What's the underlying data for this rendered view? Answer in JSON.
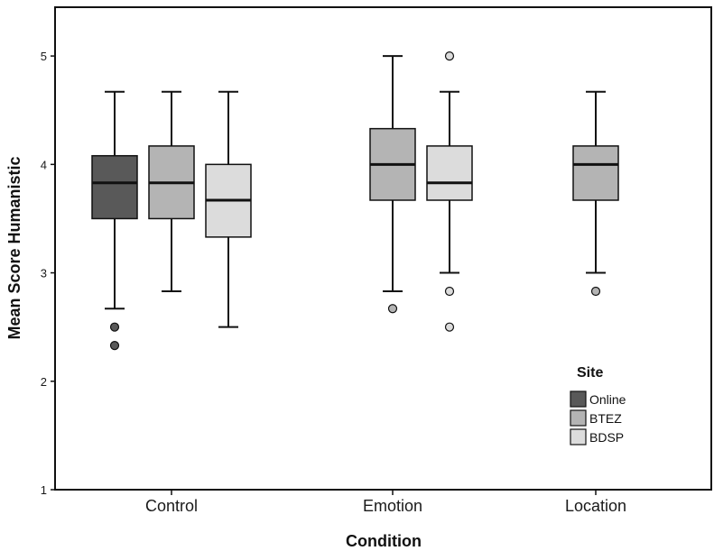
{
  "chart_data": {
    "type": "boxplot",
    "title": "",
    "xlabel": "Condition",
    "ylabel": "Mean Score Humanistic",
    "categories": [
      "Control",
      "Emotion",
      "Location"
    ],
    "ylim": [
      1,
      5.45
    ],
    "yticks": [
      "1",
      "2",
      "3",
      "4",
      "5"
    ],
    "grid": false,
    "legend": {
      "title": "Site",
      "position": "bottom-right"
    },
    "series": [
      {
        "name": "Online",
        "color": "#595959",
        "boxes": [
          {
            "category": "Control",
            "min": 2.67,
            "q1": 3.5,
            "median": 3.83,
            "q3": 4.08,
            "max": 4.67,
            "outliers": [
              2.5,
              2.33
            ]
          },
          null,
          null
        ]
      },
      {
        "name": "BTEZ",
        "color": "#b4b4b4",
        "boxes": [
          {
            "category": "Control",
            "min": 2.83,
            "q1": 3.5,
            "median": 3.83,
            "q3": 4.17,
            "max": 4.67,
            "outliers": []
          },
          {
            "category": "Emotion",
            "min": 2.83,
            "q1": 3.67,
            "median": 4.0,
            "q3": 4.33,
            "max": 5.0,
            "outliers": [
              2.67
            ]
          },
          {
            "category": "Location",
            "min": 3.0,
            "q1": 3.67,
            "median": 4.0,
            "q3": 4.17,
            "max": 4.67,
            "outliers": [
              2.83
            ]
          }
        ]
      },
      {
        "name": "BDSP",
        "color": "#dcdcdc",
        "boxes": [
          {
            "category": "Control",
            "min": 2.5,
            "q1": 3.33,
            "median": 3.67,
            "q3": 4.0,
            "max": 4.67,
            "outliers": []
          },
          {
            "category": "Emotion",
            "min": 3.0,
            "q1": 3.67,
            "median": 3.83,
            "q3": 4.17,
            "max": 4.67,
            "outliers": [
              5.0,
              2.83,
              2.5
            ]
          },
          null
        ]
      }
    ]
  }
}
